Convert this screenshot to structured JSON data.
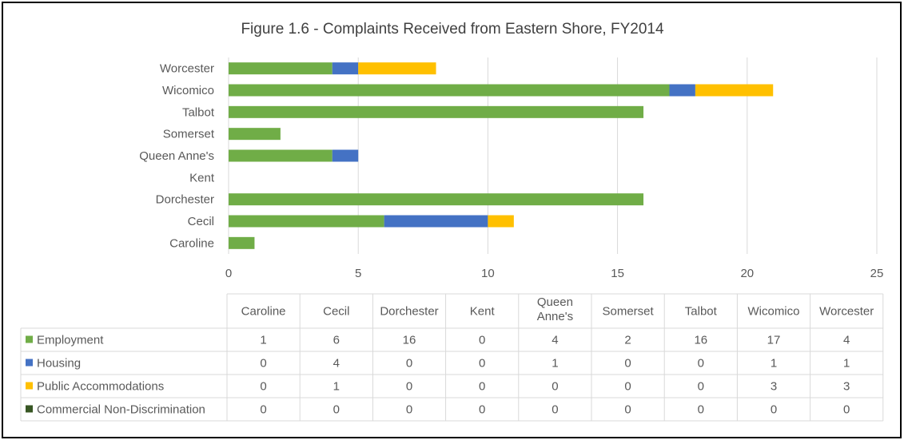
{
  "chart_data": {
    "type": "bar",
    "orientation": "horizontal",
    "stacked": true,
    "title": "Figure 1.6 - Complaints Received from Eastern Shore, FY2014",
    "categories": [
      "Caroline",
      "Cecil",
      "Dorchester",
      "Kent",
      "Queen Anne's",
      "Somerset",
      "Talbot",
      "Wicomico",
      "Worcester"
    ],
    "table_headers": [
      "Caroline",
      "Cecil",
      "Dorchester",
      "Kent",
      "Queen\nAnne's",
      "Somerset",
      "Talbot",
      "Wicomico",
      "Worcester"
    ],
    "series": [
      {
        "name": "Employment",
        "color": "#70ad47",
        "values": [
          1,
          6,
          16,
          0,
          4,
          2,
          16,
          17,
          4
        ]
      },
      {
        "name": "Housing",
        "color": "#4472c4",
        "values": [
          0,
          4,
          0,
          0,
          1,
          0,
          0,
          1,
          1
        ]
      },
      {
        "name": "Public Accommodations",
        "color": "#ffc000",
        "values": [
          0,
          1,
          0,
          0,
          0,
          0,
          0,
          3,
          3
        ]
      },
      {
        "name": "Commercial Non-Discrimination",
        "color": "#375623",
        "values": [
          0,
          0,
          0,
          0,
          0,
          0,
          0,
          0,
          0
        ]
      }
    ],
    "xlim": [
      0,
      25
    ],
    "xticks": [
      0,
      5,
      10,
      15,
      20,
      25
    ],
    "grid": true,
    "legend": "data-table"
  }
}
